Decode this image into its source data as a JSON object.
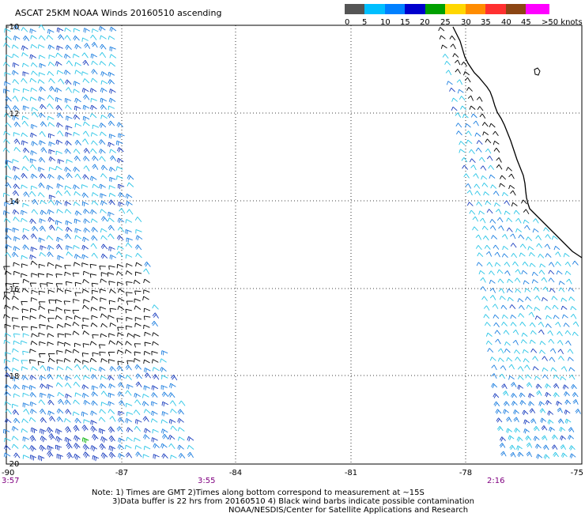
{
  "title": "ASCAT 25KM NOAA Winds 20160510 ascending",
  "legend": {
    "labels": [
      "0",
      "5",
      "10",
      "15",
      "20",
      "25",
      "30",
      "35",
      "40",
      "45",
      ">50 knots"
    ],
    "colors": [
      "#555555",
      "#00bfff",
      "#0080ff",
      "#0000cd",
      "#00a000",
      "#ffd700",
      "#ff8c00",
      "#ff3030",
      "#8b4513",
      "#ff00ff",
      "#6a0dad"
    ]
  },
  "lat_labels": [
    "-10",
    "-12",
    "-14",
    "-16",
    "-18",
    "-20"
  ],
  "lon_labels": [
    "-90",
    "-87",
    "-84",
    "-81",
    "-78",
    "-75"
  ],
  "time_labels": [
    "3:57",
    "3:55",
    "2:16"
  ],
  "notes": [
    "Note: 1) Times are GMT 2)Times along bottom correspond to measurement at ~15S",
    "3)Data buffer is 22 hrs from 20160510 4) Black wind barbs indicate possible contamination",
    "NOAA/NESDIS/Center for Satellite Applications and Research"
  ],
  "map_colors": {
    "coast": "#000000",
    "grid": "#000000",
    "barb_light": "#29c5e6",
    "barb_mid": "#1e7fe0",
    "barb_dark": "#1c3fbf",
    "barb_contam": "#000000",
    "barb_green": "#00b000"
  }
}
